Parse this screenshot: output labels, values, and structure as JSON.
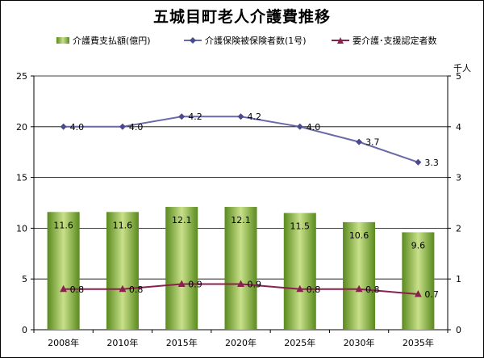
{
  "title": "五城目町老人介護費推移",
  "unit_label": "千人",
  "legend": {
    "bar": "介護費支払額(億円)",
    "line1": "介護保険被保険者数(1号)",
    "line2": "要介護･支援認定者数"
  },
  "colors": {
    "bar_dark": "#5a8a1e",
    "bar_light": "#c8e08a",
    "line1": "#6a6aa8",
    "line1_marker": "#4a4a8c",
    "line2": "#8a2050",
    "line2_marker": "#8a2050",
    "grid": "#000000"
  },
  "chart_data": {
    "type": "bar",
    "categories": [
      "2008年",
      "2010年",
      "2015年",
      "2020年",
      "2025年",
      "2030年",
      "2035年"
    ],
    "series": [
      {
        "name": "介護費支払額(億円)",
        "type": "bar",
        "axis": "left",
        "values": [
          11.6,
          11.6,
          12.1,
          12.1,
          11.5,
          10.6,
          9.6
        ],
        "labels": [
          "11.6",
          "11.6",
          "12.1",
          "12.1",
          "11.5",
          "10.6",
          "9.6"
        ]
      },
      {
        "name": "介護保険被保険者数(1号)",
        "type": "line",
        "axis": "right",
        "marker": "diamond",
        "values": [
          4.0,
          4.0,
          4.2,
          4.2,
          4.0,
          3.7,
          3.3
        ],
        "labels": [
          "4.0",
          "4.0",
          "4.2",
          "4.2",
          "4.0",
          "3.7",
          "3.3"
        ]
      },
      {
        "name": "要介護･支援認定者数",
        "type": "line",
        "axis": "right",
        "marker": "triangle",
        "values": [
          0.8,
          0.8,
          0.9,
          0.9,
          0.8,
          0.8,
          0.7
        ],
        "labels": [
          "0.8",
          "0.8",
          "0.9",
          "0.9",
          "0.8",
          "0.8",
          "0.7"
        ]
      }
    ],
    "y_left": {
      "ylim": [
        0,
        25
      ],
      "ticks": [
        "0",
        "5",
        "10",
        "15",
        "20",
        "25"
      ]
    },
    "y_right": {
      "ylim": [
        0,
        5
      ],
      "ticks": [
        "0",
        "1",
        "2",
        "3",
        "4",
        "5"
      ]
    },
    "grid": true,
    "legend_position": "top"
  }
}
